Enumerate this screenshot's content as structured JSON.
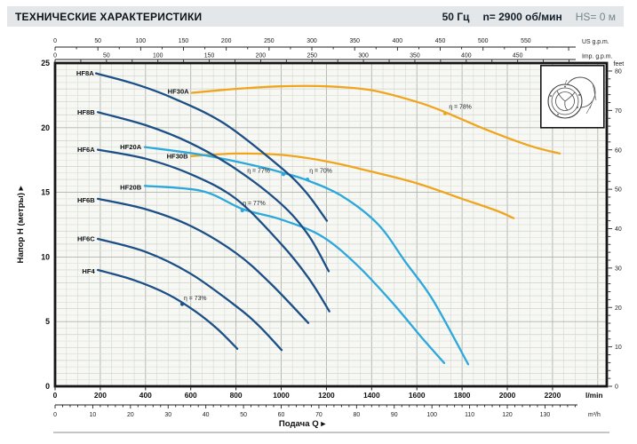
{
  "header": {
    "title": "ТЕХНИЧЕСКИЕ ХАРАКТЕРИСТИКИ",
    "frequency": "50 Гц",
    "speed": "n= 2900 об/мин",
    "suction_head": "HS= 0 м"
  },
  "icons": {
    "pump_drawing": "pump-housing-isometric-drawing"
  },
  "chart_data": {
    "type": "line",
    "xlabel": "Подача Q ▸",
    "ylabel": "Напор Н (метры) ▸",
    "xlim_lmin": [
      0,
      2440
    ],
    "ylim_m": [
      0,
      25
    ],
    "grid": "on",
    "axes": {
      "bottom_lmin": {
        "unit": "l/min",
        "label_step": 200,
        "label_max": 2200,
        "minor_step": 50
      },
      "bottom_m3h": {
        "unit": "m³/h",
        "lmin_per_unit": 16.6667,
        "label_step": 10,
        "label_max": 130,
        "minor_step": 2
      },
      "top_usgpm": {
        "unit": "US g.p.m.",
        "lmin_per_unit": 3.7854,
        "label_step": 50,
        "label_max": 550,
        "minor_step": 25
      },
      "top_impgpm": {
        "unit": "Imp. g.p.m.",
        "lmin_per_unit": 4.5461,
        "label_step": 50,
        "label_max": 450,
        "minor_step": 25
      },
      "left_m": {
        "label_step": 5,
        "label_max": 25
      },
      "right_feet": {
        "unit": "feet",
        "m_per_unit": 0.3048,
        "label_step": 10,
        "label_max": 80,
        "minor_step": 2
      }
    },
    "series": [
      {
        "name": "HF8A",
        "color": "#1d4f87",
        "label_q": 172,
        "label_h": 24.2,
        "points": [
          [
            181,
            24.2
          ],
          [
            350,
            23.4
          ],
          [
            520,
            22.3
          ],
          [
            750,
            20.3
          ],
          [
            1000,
            16.9
          ],
          [
            1110,
            15.0
          ],
          [
            1202,
            12.8
          ]
        ]
      },
      {
        "name": "HF8B",
        "color": "#1d4f87",
        "label_q": 176,
        "label_h": 21.2,
        "points": [
          [
            189,
            21.2
          ],
          [
            400,
            20.2
          ],
          [
            600,
            18.8
          ],
          [
            800,
            16.8
          ],
          [
            1000,
            14.1
          ],
          [
            1120,
            11.7
          ],
          [
            1210,
            8.9
          ]
        ]
      },
      {
        "name": "HF6A",
        "color": "#1d4f87",
        "label_q": 176,
        "label_h": 18.3,
        "points": [
          [
            189,
            18.3
          ],
          [
            400,
            17.6
          ],
          [
            600,
            16.4
          ],
          [
            800,
            14.5
          ],
          [
            1000,
            11.0
          ],
          [
            1120,
            8.4
          ],
          [
            1213,
            5.8
          ]
        ]
      },
      {
        "name": "HF6B",
        "color": "#1d4f87",
        "label_q": 176,
        "label_h": 14.4,
        "points": [
          [
            189,
            14.5
          ],
          [
            400,
            13.7
          ],
          [
            600,
            12.4
          ],
          [
            800,
            10.3
          ],
          [
            950,
            8.0
          ],
          [
            1120,
            4.9
          ]
        ]
      },
      {
        "name": "HF6C",
        "color": "#1d4f87",
        "label_q": 176,
        "label_h": 11.4,
        "points": [
          [
            189,
            11.4
          ],
          [
            400,
            10.4
          ],
          [
            600,
            8.7
          ],
          [
            800,
            6.2
          ],
          [
            900,
            4.7
          ],
          [
            1002,
            2.8
          ]
        ]
      },
      {
        "name": "HF4",
        "color": "#1d4f87",
        "label_q": 176,
        "label_h": 8.9,
        "points": [
          [
            189,
            9.0
          ],
          [
            350,
            8.2
          ],
          [
            500,
            7.1
          ],
          [
            620,
            5.8
          ],
          [
            720,
            4.4
          ],
          [
            806,
            2.9
          ]
        ]
      },
      {
        "name": "HF20A",
        "color": "#2ca8dc",
        "label_q": 382,
        "label_h": 18.5,
        "points": [
          [
            397,
            18.5
          ],
          [
            650,
            17.9
          ],
          [
            900,
            17.0
          ],
          [
            1010,
            16.5
          ],
          [
            1120,
            15.9
          ],
          [
            1270,
            14.7
          ],
          [
            1430,
            12.5
          ],
          [
            1550,
            9.6
          ],
          [
            1670,
            6.7
          ],
          [
            1827,
            1.7
          ]
        ]
      },
      {
        "name": "HF20B",
        "color": "#2ca8dc",
        "label_q": 382,
        "label_h": 15.4,
        "points": [
          [
            397,
            15.5
          ],
          [
            650,
            15.1
          ],
          [
            830,
            13.7
          ],
          [
            1000,
            12.9
          ],
          [
            1180,
            11.6
          ],
          [
            1340,
            9.3
          ],
          [
            1500,
            6.3
          ],
          [
            1620,
            3.8
          ],
          [
            1721,
            1.8
          ]
        ]
      },
      {
        "name": "HF30A",
        "color": "#f0a51f",
        "label_q": 592,
        "label_h": 22.8,
        "points": [
          [
            605,
            22.7
          ],
          [
            800,
            23.0
          ],
          [
            1000,
            23.2
          ],
          [
            1200,
            23.2
          ],
          [
            1400,
            22.9
          ],
          [
            1600,
            22.0
          ],
          [
            1725,
            21.2
          ],
          [
            1900,
            19.9
          ],
          [
            2100,
            18.6
          ],
          [
            2232,
            18.0
          ]
        ]
      },
      {
        "name": "HF30B",
        "color": "#f0a51f",
        "label_q": 588,
        "label_h": 17.8,
        "points": [
          [
            601,
            17.8
          ],
          [
            800,
            18.0
          ],
          [
            1000,
            17.9
          ],
          [
            1200,
            17.4
          ],
          [
            1400,
            16.6
          ],
          [
            1600,
            15.7
          ],
          [
            1800,
            14.5
          ],
          [
            1950,
            13.6
          ],
          [
            2028,
            13.0
          ]
        ]
      }
    ],
    "efficiency_markers": [
      {
        "text": "η = 77%",
        "series": "HF20A",
        "color": "#2ca8dc",
        "dot_q": 1010,
        "dot_h": 16.4,
        "text_q": 900,
        "text_h": 16.65
      },
      {
        "text": "η = 70%",
        "series": "HF20A",
        "color": "#2ca8dc",
        "dot_q": 1116,
        "dot_h": 16.0,
        "text_q": 1175,
        "text_h": 16.65
      },
      {
        "text": "η = 77%",
        "series": "HF20B",
        "color": "#2ca8dc",
        "dot_q": 828,
        "dot_h": 13.6,
        "text_q": 880,
        "text_h": 14.15
      },
      {
        "text": "η = 73%",
        "series": "HF4",
        "color": "#1d4f87",
        "dot_q": 562,
        "dot_h": 6.35,
        "text_q": 620,
        "text_h": 6.8
      },
      {
        "text": "η = 78%",
        "series": "HF30A",
        "color": "#f0a51f",
        "dot_q": 1725,
        "dot_h": 21.1,
        "text_q": 1792,
        "text_h": 21.6
      }
    ]
  }
}
